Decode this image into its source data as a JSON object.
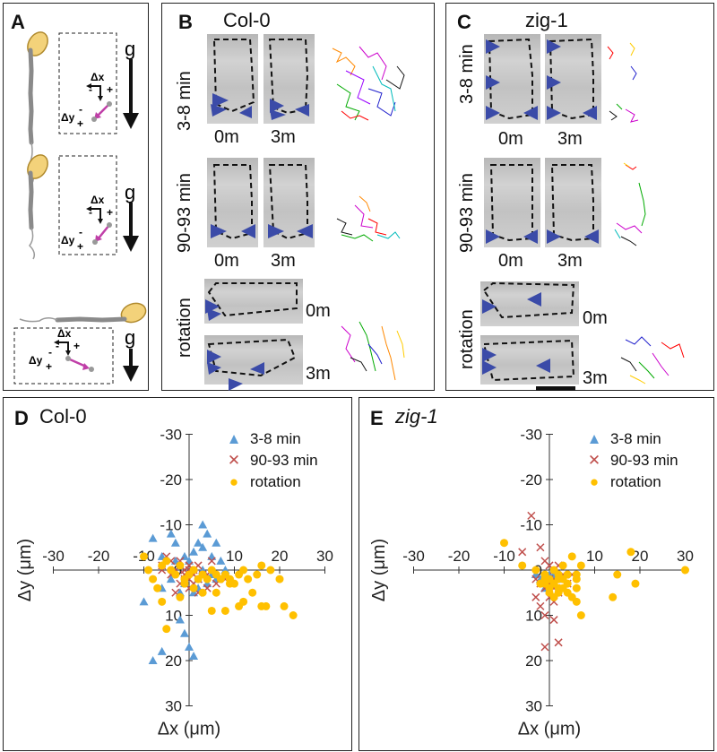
{
  "figure": {
    "panel_a": {
      "label": "A",
      "diagrams": [
        {
          "dx": "Δx",
          "dy": "Δy",
          "dx_minus": "-",
          "dx_plus": "+",
          "dy_minus": "-",
          "dy_plus": "+",
          "g": "g"
        },
        {
          "dx": "Δx",
          "dy": "Δy",
          "dx_minus": "-",
          "dx_plus": "+",
          "dy_minus": "-",
          "dy_plus": "+",
          "g": "g"
        },
        {
          "dx": "Δx",
          "dy": "Δy",
          "dx_minus": "-",
          "dx_plus": "+",
          "dy_minus": "-",
          "dy_plus": "+",
          "g": "g"
        }
      ]
    },
    "panel_b": {
      "label": "B",
      "title": "Col-0",
      "row1": {
        "label": "3-8 min",
        "t0": "0m",
        "t1": "3m"
      },
      "row2": {
        "label": "90-93 min",
        "t0": "0m",
        "t1": "3m"
      },
      "row3": {
        "label": "rotation",
        "t0": "0m",
        "t1": "3m"
      }
    },
    "panel_c": {
      "label": "C",
      "title": "zig-1",
      "row1": {
        "label": "3-8 min",
        "t0": "0m",
        "t1": "3m"
      },
      "row2": {
        "label": "90-93 min",
        "t0": "0m",
        "t1": "3m"
      },
      "row3": {
        "label": "rotation",
        "t0": "0m",
        "t1": "3m"
      }
    },
    "panel_d": {
      "label": "D",
      "title": "Col-0"
    },
    "panel_e": {
      "label": "E",
      "title": "zig-1"
    }
  },
  "colors": {
    "series_3_8": "#5b9bd5",
    "series_90_93": "#c0504d",
    "series_rotation": "#ffc000",
    "arrowhead": "#3b4ba8",
    "magenta": "#c03fa8",
    "seed": "#f3d27a"
  },
  "chart_data": [
    {
      "type": "scatter",
      "title": "Col-0",
      "xlabel": "Δx (μm)",
      "ylabel": "Δy (μm)",
      "xlim": [
        -30,
        30
      ],
      "ylim": [
        -30,
        30
      ],
      "y_inverted": true,
      "xticks": [
        -30,
        -20,
        -10,
        0,
        10,
        20,
        30
      ],
      "yticks": [
        -30,
        -20,
        -10,
        0,
        10,
        20,
        30
      ],
      "legend": "top-right",
      "series": [
        {
          "name": "3-8 min",
          "marker": "triangle",
          "points": [
            [
              -8,
              -7
            ],
            [
              -6,
              -3
            ],
            [
              -4,
              -8
            ],
            [
              -3,
              -6
            ],
            [
              -1,
              -3
            ],
            [
              -2,
              -1
            ],
            [
              0,
              -2
            ],
            [
              1,
              -4
            ],
            [
              2,
              -6
            ],
            [
              3,
              -10
            ],
            [
              4,
              -8
            ],
            [
              3,
              -5
            ],
            [
              5,
              -3
            ],
            [
              6,
              -6
            ],
            [
              7,
              -2
            ],
            [
              8,
              0
            ],
            [
              6,
              2
            ],
            [
              4,
              3
            ],
            [
              2,
              4
            ],
            [
              1,
              5
            ],
            [
              -1,
              3
            ],
            [
              -2,
              5
            ],
            [
              -4,
              2
            ],
            [
              -6,
              4
            ],
            [
              -10,
              7
            ],
            [
              -8,
              20
            ],
            [
              -6,
              18
            ],
            [
              -2,
              11
            ],
            [
              -1,
              14
            ],
            [
              0,
              17
            ],
            [
              1,
              19
            ],
            [
              2,
              2
            ],
            [
              -3,
              -2
            ],
            [
              3,
              0
            ],
            [
              5,
              1
            ]
          ]
        },
        {
          "name": "90-93 min",
          "marker": "x",
          "points": [
            [
              -6,
              -1
            ],
            [
              -5,
              -3
            ],
            [
              -4,
              -2
            ],
            [
              -3,
              0
            ],
            [
              -2,
              -2
            ],
            [
              -1,
              1
            ],
            [
              0,
              -1
            ],
            [
              1,
              0
            ],
            [
              0,
              2
            ],
            [
              -1,
              2
            ],
            [
              1,
              3
            ],
            [
              2,
              -1
            ],
            [
              3,
              1
            ],
            [
              -2,
              3
            ],
            [
              -3,
              5
            ],
            [
              0,
              4
            ],
            [
              2,
              2
            ],
            [
              4,
              1
            ],
            [
              5,
              -2
            ],
            [
              6,
              3
            ],
            [
              8,
              2
            ],
            [
              4,
              4
            ],
            [
              -1,
              0
            ],
            [
              0,
              0
            ],
            [
              1,
              1
            ],
            [
              -4,
              1
            ],
            [
              -6,
              0
            ],
            [
              2,
              5
            ]
          ]
        },
        {
          "name": "rotation",
          "marker": "circle",
          "points": [
            [
              -10,
              -3
            ],
            [
              -9,
              0
            ],
            [
              -8,
              2
            ],
            [
              -6,
              -1
            ],
            [
              -5,
              -2
            ],
            [
              -4,
              0
            ],
            [
              -3,
              1
            ],
            [
              -2,
              -1
            ],
            [
              -1,
              2
            ],
            [
              0,
              1
            ],
            [
              1,
              0
            ],
            [
              2,
              2
            ],
            [
              3,
              1
            ],
            [
              4,
              2
            ],
            [
              5,
              0
            ],
            [
              6,
              1
            ],
            [
              7,
              2
            ],
            [
              8,
              1
            ],
            [
              9,
              2
            ],
            [
              10,
              3
            ],
            [
              11,
              1
            ],
            [
              12,
              0
            ],
            [
              13,
              2
            ],
            [
              14,
              5
            ],
            [
              15,
              1
            ],
            [
              16,
              -1
            ],
            [
              18,
              0
            ],
            [
              20,
              2
            ],
            [
              21,
              8
            ],
            [
              23,
              10
            ],
            [
              16,
              8
            ],
            [
              17,
              8
            ],
            [
              11,
              8
            ],
            [
              8,
              9
            ],
            [
              5,
              9
            ],
            [
              3,
              5
            ],
            [
              1,
              4
            ],
            [
              -2,
              6
            ],
            [
              -5,
              13
            ],
            [
              -6,
              7
            ],
            [
              -1,
              3
            ],
            [
              6,
              5
            ],
            [
              9,
              3
            ],
            [
              12,
              7
            ],
            [
              -7,
              4
            ]
          ]
        }
      ]
    },
    {
      "type": "scatter",
      "title": "zig-1",
      "xlabel": "Δx (μm)",
      "ylabel": "Δy (μm)",
      "xlim": [
        -30,
        30
      ],
      "ylim": [
        -30,
        30
      ],
      "y_inverted": true,
      "xticks": [
        -30,
        -20,
        -10,
        0,
        10,
        20,
        30
      ],
      "yticks": [
        -30,
        -20,
        -10,
        0,
        10,
        20,
        30
      ],
      "legend": "top-right",
      "series": [
        {
          "name": "3-8 min",
          "marker": "triangle",
          "points": [
            [
              -1,
              2
            ],
            [
              0,
              1
            ],
            [
              1,
              3
            ],
            [
              -2,
              2
            ],
            [
              1,
              1
            ],
            [
              0,
              3
            ],
            [
              -1,
              4
            ],
            [
              2,
              2
            ],
            [
              -3,
              1
            ],
            [
              3,
              2
            ]
          ]
        },
        {
          "name": "90-93 min",
          "marker": "x",
          "points": [
            [
              -4,
              -12
            ],
            [
              -6,
              -4
            ],
            [
              -2,
              -5
            ],
            [
              -1,
              -2
            ],
            [
              0,
              -1
            ],
            [
              1,
              0
            ],
            [
              2,
              -1
            ],
            [
              3,
              1
            ],
            [
              1,
              2
            ],
            [
              0,
              3
            ],
            [
              -1,
              4
            ],
            [
              -2,
              3
            ],
            [
              -3,
              2
            ],
            [
              2,
              5
            ],
            [
              1,
              7
            ],
            [
              3,
              4
            ],
            [
              0,
              6
            ],
            [
              -2,
              8
            ],
            [
              -1,
              10
            ],
            [
              1,
              11
            ],
            [
              -1,
              17
            ],
            [
              2,
              16
            ],
            [
              -3,
              6
            ],
            [
              4,
              3
            ],
            [
              0,
              2
            ],
            [
              5,
              1
            ],
            [
              1,
              4
            ]
          ]
        },
        {
          "name": "rotation",
          "marker": "circle",
          "points": [
            [
              -10,
              -6
            ],
            [
              -6,
              -1
            ],
            [
              -3,
              0
            ],
            [
              -1,
              1
            ],
            [
              0,
              2
            ],
            [
              1,
              0
            ],
            [
              2,
              1
            ],
            [
              1,
              3
            ],
            [
              0,
              4
            ],
            [
              -1,
              3
            ],
            [
              2,
              2
            ],
            [
              3,
              4
            ],
            [
              4,
              3
            ],
            [
              5,
              6
            ],
            [
              6,
              7
            ],
            [
              7,
              10
            ],
            [
              4,
              1
            ],
            [
              6,
              1
            ],
            [
              7,
              -1
            ],
            [
              3,
              -1
            ],
            [
              5,
              -3
            ],
            [
              15,
              1
            ],
            [
              19,
              3
            ],
            [
              18,
              -4
            ],
            [
              30,
              0
            ],
            [
              14,
              6
            ],
            [
              6,
              2
            ],
            [
              0,
              5
            ],
            [
              2,
              4
            ],
            [
              -2,
              3
            ],
            [
              1,
              6
            ],
            [
              2,
              5
            ],
            [
              3,
              2
            ],
            [
              4,
              5
            ],
            [
              -1,
              2
            ],
            [
              6,
              4
            ]
          ]
        }
      ]
    }
  ]
}
